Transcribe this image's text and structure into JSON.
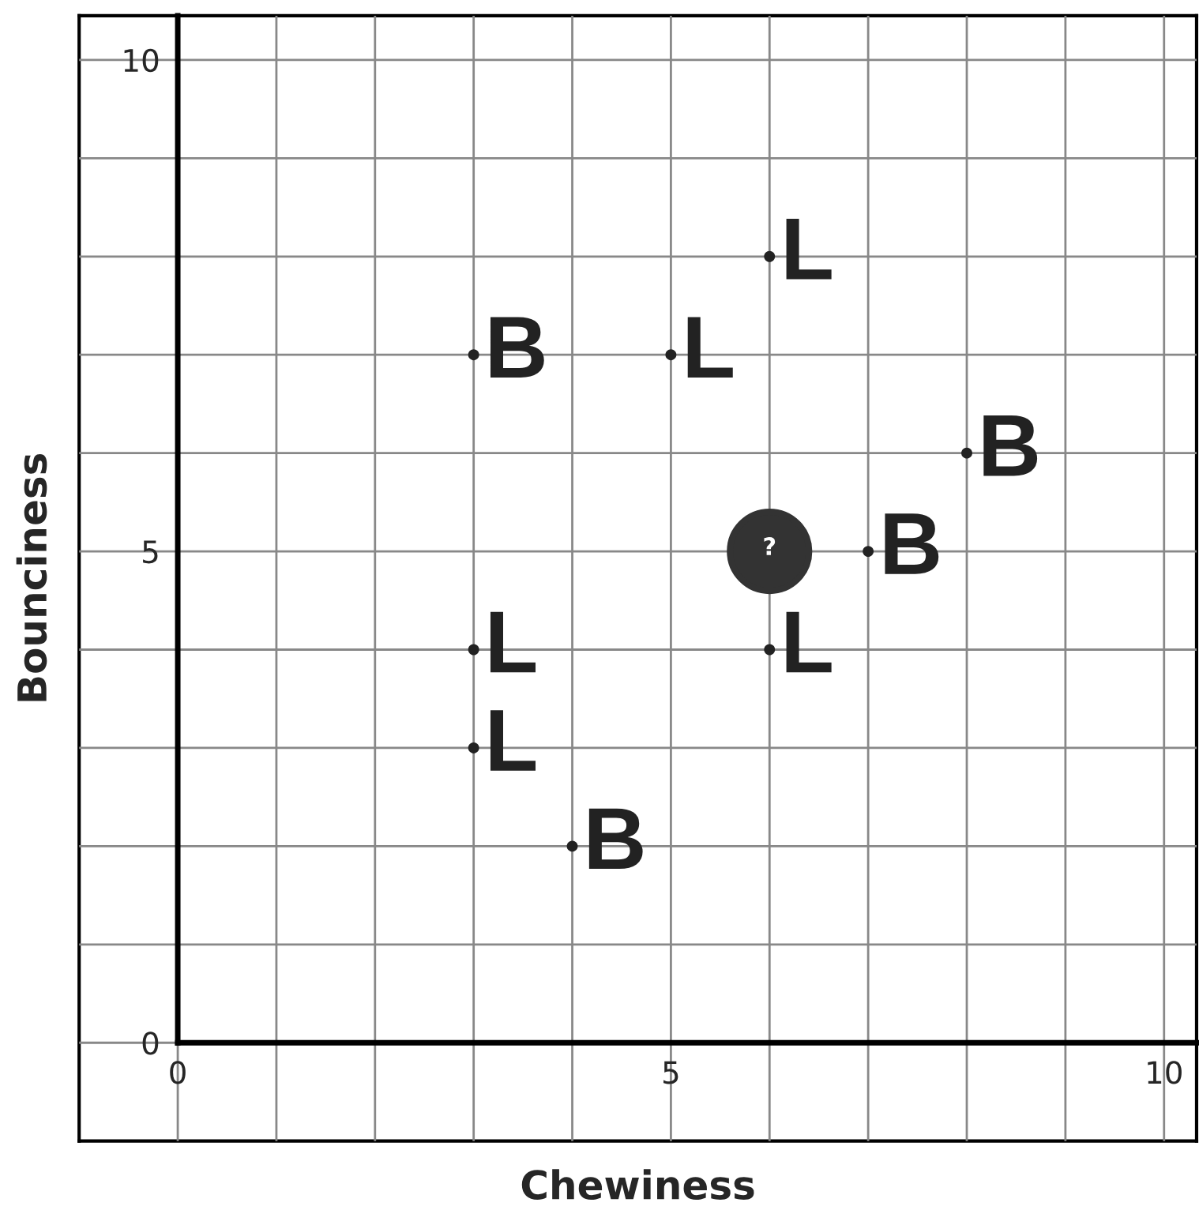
{
  "chart_data": {
    "type": "scatter",
    "xlabel": "Chewiness",
    "ylabel": "Bounciness",
    "series": [
      {
        "name": "B",
        "color": "#222222",
        "x": [
          3,
          8,
          7,
          4
        ],
        "values": [
          7,
          6,
          5,
          2
        ]
      },
      {
        "name": "L",
        "color": "#222222",
        "x": [
          6,
          5,
          3,
          3,
          6
        ],
        "values": [
          8,
          7,
          4,
          3,
          4
        ]
      },
      {
        "name": "?",
        "color": "#333333",
        "marker": "circle",
        "x": [
          6
        ],
        "values": [
          5
        ]
      }
    ],
    "xlim": [
      -1,
      10.33
    ],
    "ylim": [
      -1,
      10.45
    ],
    "xticks": [
      0,
      {
        "value": 1,
        "label": null
      },
      {
        "value": 2,
        "label": null
      },
      {
        "value": 3,
        "label": null
      },
      {
        "value": 4,
        "label": null
      },
      5,
      {
        "value": 6,
        "label": null
      },
      {
        "value": 7,
        "label": null
      },
      {
        "value": 8,
        "label": null
      },
      {
        "value": 9,
        "label": null
      },
      10
    ],
    "yticks": [
      0,
      {
        "value": 1,
        "label": null
      },
      {
        "value": 2,
        "label": null
      },
      {
        "value": 3,
        "label": null
      },
      {
        "value": 4,
        "label": null
      },
      5,
      {
        "value": 6,
        "label": null
      },
      {
        "value": 7,
        "label": null
      },
      {
        "value": 8,
        "label": null
      },
      {
        "value": 9,
        "label": null
      },
      10
    ],
    "grid": true,
    "legend": false
  }
}
